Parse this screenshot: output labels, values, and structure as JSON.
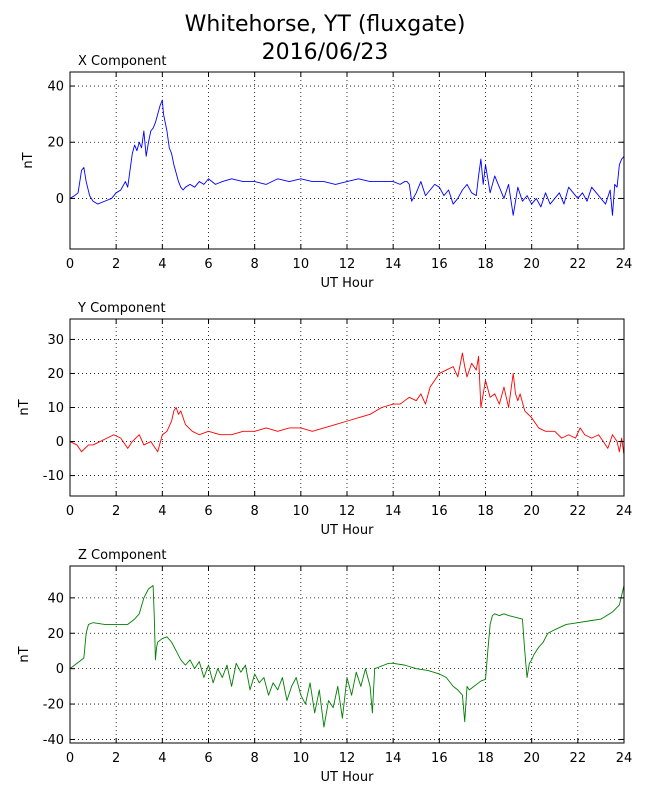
{
  "title": "Whitehorse, YT (fluxgate)",
  "subtitle": "2016/06/23",
  "colors": {
    "x_line": "#0000ff",
    "y_line": "#ff0000",
    "z_line": "#007f00",
    "grid": "#000000",
    "axes": "#000000",
    "background": "#ffffff"
  },
  "chart_data": [
    {
      "type": "line",
      "title": "X Component",
      "xlabel": "UT Hour",
      "ylabel": "nT",
      "xlim": [
        0,
        24
      ],
      "ylim": [
        -18,
        45
      ],
      "xticks": [
        0,
        2,
        4,
        6,
        8,
        10,
        12,
        14,
        16,
        18,
        20,
        22,
        24
      ],
      "yticks": [
        0,
        20,
        40
      ],
      "grid": true,
      "color": "#0000ff",
      "series": [
        {
          "x": [
            0,
            0.2,
            0.35,
            0.5,
            0.6,
            0.7,
            0.85,
            1.0,
            1.2,
            1.5,
            1.8,
            2.0,
            2.2,
            2.4,
            2.5,
            2.6,
            2.7,
            2.8,
            2.9,
            3.0,
            3.1,
            3.2,
            3.3,
            3.4,
            3.5,
            3.6,
            3.7,
            3.8,
            3.9,
            4.0,
            4.05,
            4.1,
            4.2,
            4.3,
            4.4,
            4.5,
            4.6,
            4.7,
            4.8,
            4.9,
            5.0,
            5.2,
            5.4,
            5.6,
            5.8,
            6.0,
            6.3,
            6.6,
            7.0,
            7.5,
            8.0,
            8.5,
            9.0,
            9.5,
            10.0,
            10.5,
            11.0,
            11.5,
            12.0,
            12.5,
            13.0,
            13.5,
            14.0,
            14.3,
            14.5,
            14.6,
            14.7,
            14.8,
            15.0,
            15.2,
            15.4,
            15.6,
            15.8,
            16.0,
            16.2,
            16.4,
            16.6,
            16.8,
            17.0,
            17.2,
            17.4,
            17.6,
            17.7,
            17.8,
            17.9,
            18.0,
            18.2,
            18.4,
            18.6,
            18.8,
            19.0,
            19.2,
            19.4,
            19.6,
            19.8,
            20.0,
            20.2,
            20.4,
            20.6,
            20.8,
            21.0,
            21.2,
            21.4,
            21.6,
            21.8,
            22.0,
            22.2,
            22.4,
            22.6,
            22.8,
            23.0,
            23.2,
            23.4,
            23.5,
            23.6,
            23.7,
            23.8,
            23.9,
            24.0
          ],
          "y": [
            0,
            1,
            2,
            10,
            11,
            6,
            1,
            -1,
            -2,
            -1,
            0,
            2,
            3,
            6,
            4,
            10,
            16,
            19,
            17,
            20,
            18,
            24,
            15,
            20,
            24,
            25,
            27,
            30,
            33,
            35,
            30,
            28,
            24,
            18,
            16,
            12,
            9,
            6,
            4,
            3,
            4,
            5,
            4,
            6,
            5,
            7,
            5,
            6,
            7,
            6,
            6,
            5,
            7,
            6,
            7,
            6,
            6,
            5,
            6,
            7,
            6,
            6,
            6,
            5,
            6,
            6,
            5,
            -1,
            2,
            6,
            1,
            3,
            5,
            4,
            1,
            3,
            -2,
            0,
            3,
            5,
            2,
            1,
            8,
            14,
            5,
            12,
            2,
            8,
            4,
            0,
            5,
            -6,
            4,
            -1,
            1,
            -2,
            0,
            -3,
            2,
            -2,
            0,
            2,
            -2,
            4,
            2,
            0,
            2,
            -1,
            4,
            2,
            0,
            -2,
            3,
            -6,
            5,
            4,
            12,
            14,
            15
          ]
        }
      ]
    },
    {
      "type": "line",
      "title": "Y Component",
      "xlabel": "UT Hour",
      "ylabel": "nT",
      "xlim": [
        0,
        24
      ],
      "ylim": [
        -16,
        36
      ],
      "xticks": [
        0,
        2,
        4,
        6,
        8,
        10,
        12,
        14,
        16,
        18,
        20,
        22,
        24
      ],
      "yticks": [
        -10,
        0,
        10,
        20,
        30
      ],
      "grid": true,
      "color": "#ff0000",
      "series": [
        {
          "x": [
            0,
            0.3,
            0.5,
            0.8,
            1.0,
            1.3,
            1.6,
            1.9,
            2.2,
            2.5,
            2.7,
            3.0,
            3.2,
            3.5,
            3.8,
            4.0,
            4.2,
            4.4,
            4.5,
            4.6,
            4.7,
            4.8,
            5.0,
            5.3,
            5.6,
            6.0,
            6.5,
            7.0,
            7.5,
            8.0,
            8.5,
            9.0,
            9.5,
            10.0,
            10.5,
            11.0,
            11.5,
            12.0,
            12.5,
            13.0,
            13.5,
            14.0,
            14.3,
            14.5,
            14.7,
            15.0,
            15.2,
            15.4,
            15.6,
            15.8,
            16.0,
            16.3,
            16.6,
            16.8,
            17.0,
            17.1,
            17.2,
            17.4,
            17.6,
            17.7,
            17.8,
            17.9,
            18.0,
            18.2,
            18.4,
            18.6,
            18.8,
            19.0,
            19.2,
            19.3,
            19.4,
            19.5,
            19.7,
            20.0,
            20.3,
            20.6,
            21.0,
            21.3,
            21.6,
            21.9,
            22.1,
            22.3,
            22.6,
            22.9,
            23.1,
            23.3,
            23.5,
            23.7,
            23.8,
            23.9,
            24.0
          ],
          "y": [
            0,
            -1,
            -3,
            -1,
            -1,
            0,
            1,
            2,
            1,
            -2,
            0,
            2,
            -1,
            0,
            -3,
            2,
            3,
            6,
            9,
            10,
            8,
            9,
            5,
            3,
            2,
            3,
            2,
            2,
            3,
            3,
            4,
            3,
            4,
            4,
            3,
            4,
            5,
            6,
            7,
            8,
            10,
            11,
            11,
            12,
            13,
            12,
            14,
            11,
            16,
            18,
            20,
            21,
            22,
            19,
            26,
            22,
            19,
            23,
            21,
            25,
            10,
            14,
            18,
            13,
            14,
            11,
            16,
            10,
            20,
            14,
            12,
            14,
            9,
            7,
            4,
            3,
            3,
            1,
            2,
            1,
            4,
            2,
            1,
            2,
            0,
            -2,
            2,
            0,
            -3,
            1,
            -4
          ]
        }
      ]
    },
    {
      "type": "line",
      "title": "Z Component",
      "xlabel": "UT Hour",
      "ylabel": "nT",
      "xlim": [
        0,
        24
      ],
      "ylim": [
        -42,
        58
      ],
      "xticks": [
        0,
        2,
        4,
        6,
        8,
        10,
        12,
        14,
        16,
        18,
        20,
        22,
        24
      ],
      "yticks": [
        -40,
        -20,
        0,
        20,
        40
      ],
      "grid": true,
      "color": "#007f00",
      "series": [
        {
          "x": [
            0,
            0.3,
            0.6,
            0.7,
            0.8,
            1.0,
            1.5,
            2.0,
            2.5,
            2.8,
            3.0,
            3.2,
            3.4,
            3.6,
            3.65,
            3.7,
            3.75,
            3.8,
            4.0,
            4.2,
            4.4,
            4.6,
            4.8,
            5.0,
            5.2,
            5.4,
            5.6,
            5.8,
            6.0,
            6.2,
            6.4,
            6.6,
            6.8,
            7.0,
            7.2,
            7.4,
            7.6,
            7.8,
            8.0,
            8.2,
            8.4,
            8.6,
            8.8,
            9.0,
            9.2,
            9.4,
            9.6,
            9.8,
            10.0,
            10.2,
            10.4,
            10.6,
            10.8,
            11.0,
            11.2,
            11.4,
            11.6,
            11.8,
            12.0,
            12.2,
            12.4,
            12.6,
            12.8,
            13.0,
            13.1,
            13.2,
            13.4,
            13.6,
            13.8,
            14.0,
            14.5,
            15.0,
            15.5,
            16.0,
            16.3,
            16.6,
            16.8,
            17.0,
            17.1,
            17.2,
            17.3,
            17.5,
            17.8,
            18.0,
            18.1,
            18.2,
            18.3,
            18.4,
            18.6,
            18.8,
            19.0,
            19.3,
            19.6,
            19.7,
            19.8,
            19.9,
            20.0,
            20.1,
            20.3,
            20.5,
            20.7,
            21.0,
            21.5,
            22.0,
            22.5,
            23.0,
            23.5,
            23.8,
            24.0
          ],
          "y": [
            0,
            3,
            6,
            20,
            25,
            26,
            25,
            25,
            25,
            28,
            31,
            40,
            45,
            47,
            30,
            5,
            12,
            15,
            17,
            18,
            15,
            10,
            5,
            2,
            5,
            0,
            4,
            -5,
            2,
            -8,
            0,
            -5,
            2,
            -10,
            3,
            -2,
            2,
            -12,
            -3,
            -8,
            -5,
            -15,
            -8,
            -12,
            -5,
            -18,
            -10,
            -5,
            -15,
            -20,
            -8,
            -25,
            -12,
            -33,
            -18,
            -22,
            -10,
            -28,
            -5,
            -15,
            -2,
            -10,
            0,
            -10,
            -25,
            0,
            1,
            2,
            3,
            3,
            2,
            0,
            -1,
            -3,
            -5,
            -10,
            -12,
            -15,
            -30,
            -10,
            -12,
            -10,
            -7,
            -6,
            10,
            25,
            30,
            31,
            30,
            31,
            30,
            29,
            28,
            10,
            -5,
            3,
            5,
            8,
            12,
            15,
            20,
            22,
            25,
            26,
            27,
            28,
            32,
            36,
            47
          ]
        }
      ]
    }
  ]
}
